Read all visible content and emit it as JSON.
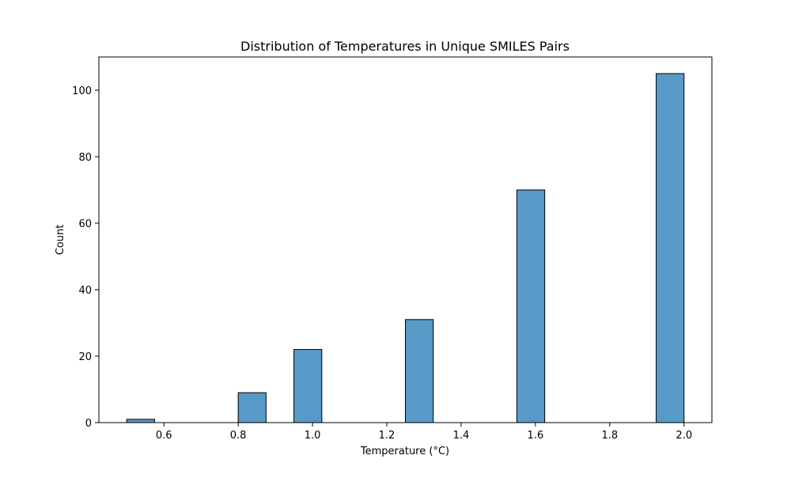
{
  "chart_data": {
    "type": "bar",
    "subtype": "histogram",
    "title": "Distribution of Temperatures in Unique SMILES Pairs",
    "xlabel": "Temperature (°C)",
    "ylabel": "Count",
    "xlim": [
      0.425,
      2.075
    ],
    "ylim": [
      0,
      110
    ],
    "bins": [
      {
        "x0": 0.5,
        "x1": 0.575,
        "count": 1
      },
      {
        "x0": 0.8,
        "x1": 0.875,
        "count": 9
      },
      {
        "x0": 0.95,
        "x1": 1.025,
        "count": 22
      },
      {
        "x0": 1.25,
        "x1": 1.325,
        "count": 31
      },
      {
        "x0": 1.55,
        "x1": 1.625,
        "count": 70
      },
      {
        "x0": 1.925,
        "x1": 2.0,
        "count": 105
      }
    ],
    "xticks": [
      0.6,
      0.8,
      1.0,
      1.2,
      1.4,
      1.6,
      1.8,
      2.0
    ],
    "xtick_labels": [
      "0.6",
      "0.8",
      "1.0",
      "1.2",
      "1.4",
      "1.6",
      "1.8",
      "2.0"
    ],
    "yticks": [
      0,
      20,
      40,
      60,
      80,
      100
    ],
    "ytick_labels": [
      "0",
      "20",
      "40",
      "60",
      "80",
      "100"
    ],
    "grid": false,
    "colors": {
      "bar_fill": "#5799c7",
      "bar_edge": "#000000"
    }
  }
}
